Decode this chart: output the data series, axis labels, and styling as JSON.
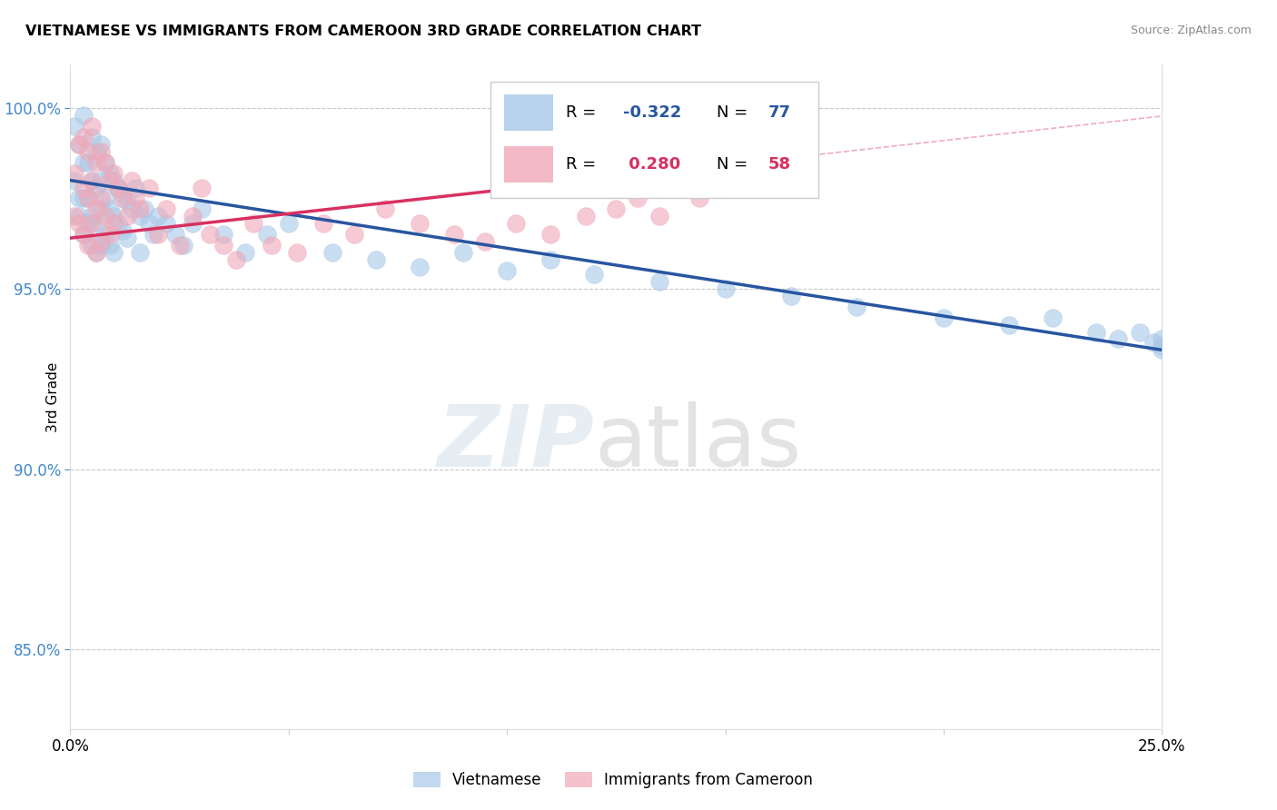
{
  "title": "VIETNAMESE VS IMMIGRANTS FROM CAMEROON 3RD GRADE CORRELATION CHART",
  "source": "Source: ZipAtlas.com",
  "ylabel": "3rd Grade",
  "xlim": [
    0.0,
    0.25
  ],
  "ylim": [
    0.828,
    1.012
  ],
  "x_ticks": [
    0.0,
    0.05,
    0.1,
    0.15,
    0.2,
    0.25
  ],
  "x_tick_labels": [
    "0.0%",
    "",
    "",
    "",
    "",
    "25.0%"
  ],
  "y_ticks": [
    0.85,
    0.9,
    0.95,
    1.0
  ],
  "y_tick_labels": [
    "85.0%",
    "90.0%",
    "95.0%",
    "100.0%"
  ],
  "blue_R": -0.322,
  "blue_N": 77,
  "pink_R": 0.28,
  "pink_N": 58,
  "blue_color": "#a8c8e8",
  "pink_color": "#f0a8b8",
  "blue_line_color": "#2855a0",
  "pink_line_color": "#d83060",
  "ytick_color": "#4488cc",
  "legend_label_blue": "Vietnamese",
  "legend_label_pink": "Immigrants from Cameroon",
  "blue_trend_x0": 0.0,
  "blue_trend_y0": 0.98,
  "blue_trend_x1": 0.25,
  "blue_trend_y1": 0.933,
  "pink_trend_x0": 0.0,
  "pink_trend_y0": 0.964,
  "pink_trend_x1": 0.148,
  "pink_trend_y1": 0.984,
  "blue_scatter_x": [
    0.001,
    0.001,
    0.002,
    0.002,
    0.002,
    0.003,
    0.003,
    0.003,
    0.003,
    0.004,
    0.004,
    0.004,
    0.005,
    0.005,
    0.005,
    0.005,
    0.006,
    0.006,
    0.006,
    0.006,
    0.007,
    0.007,
    0.007,
    0.007,
    0.008,
    0.008,
    0.008,
    0.009,
    0.009,
    0.009,
    0.01,
    0.01,
    0.01,
    0.011,
    0.011,
    0.012,
    0.012,
    0.013,
    0.013,
    0.014,
    0.015,
    0.016,
    0.016,
    0.017,
    0.018,
    0.019,
    0.02,
    0.022,
    0.024,
    0.026,
    0.028,
    0.03,
    0.035,
    0.04,
    0.045,
    0.05,
    0.06,
    0.07,
    0.08,
    0.09,
    0.1,
    0.11,
    0.12,
    0.135,
    0.15,
    0.165,
    0.18,
    0.2,
    0.215,
    0.225,
    0.235,
    0.24,
    0.245,
    0.248,
    0.25,
    0.25,
    0.25
  ],
  "blue_scatter_y": [
    0.98,
    0.995,
    0.975,
    0.99,
    0.97,
    0.985,
    0.975,
    0.965,
    0.998,
    0.985,
    0.975,
    0.968,
    0.992,
    0.98,
    0.97,
    0.962,
    0.988,
    0.978,
    0.968,
    0.96,
    0.99,
    0.98,
    0.972,
    0.962,
    0.985,
    0.975,
    0.965,
    0.982,
    0.972,
    0.962,
    0.98,
    0.97,
    0.96,
    0.978,
    0.968,
    0.976,
    0.966,
    0.974,
    0.964,
    0.972,
    0.978,
    0.97,
    0.96,
    0.972,
    0.968,
    0.965,
    0.97,
    0.968,
    0.965,
    0.962,
    0.968,
    0.972,
    0.965,
    0.96,
    0.965,
    0.968,
    0.96,
    0.958,
    0.956,
    0.96,
    0.955,
    0.958,
    0.954,
    0.952,
    0.95,
    0.948,
    0.945,
    0.942,
    0.94,
    0.942,
    0.938,
    0.936,
    0.938,
    0.935,
    0.936,
    0.934,
    0.933
  ],
  "pink_scatter_x": [
    0.001,
    0.001,
    0.002,
    0.002,
    0.003,
    0.003,
    0.003,
    0.004,
    0.004,
    0.004,
    0.005,
    0.005,
    0.005,
    0.006,
    0.006,
    0.006,
    0.007,
    0.007,
    0.007,
    0.008,
    0.008,
    0.009,
    0.009,
    0.01,
    0.01,
    0.011,
    0.012,
    0.013,
    0.014,
    0.015,
    0.016,
    0.018,
    0.02,
    0.022,
    0.025,
    0.028,
    0.03,
    0.032,
    0.035,
    0.038,
    0.042,
    0.046,
    0.052,
    0.058,
    0.065,
    0.072,
    0.08,
    0.088,
    0.095,
    0.102,
    0.11,
    0.118,
    0.125,
    0.13,
    0.135,
    0.14,
    0.144,
    0.148
  ],
  "pink_scatter_y": [
    0.982,
    0.97,
    0.99,
    0.968,
    0.992,
    0.978,
    0.965,
    0.988,
    0.975,
    0.962,
    0.995,
    0.98,
    0.968,
    0.985,
    0.972,
    0.96,
    0.988,
    0.975,
    0.963,
    0.985,
    0.97,
    0.98,
    0.965,
    0.982,
    0.968,
    0.978,
    0.975,
    0.97,
    0.98,
    0.975,
    0.972,
    0.978,
    0.965,
    0.972,
    0.962,
    0.97,
    0.978,
    0.965,
    0.962,
    0.958,
    0.968,
    0.962,
    0.96,
    0.968,
    0.965,
    0.972,
    0.968,
    0.965,
    0.963,
    0.968,
    0.965,
    0.97,
    0.972,
    0.975,
    0.97,
    0.978,
    0.975,
    0.982
  ]
}
